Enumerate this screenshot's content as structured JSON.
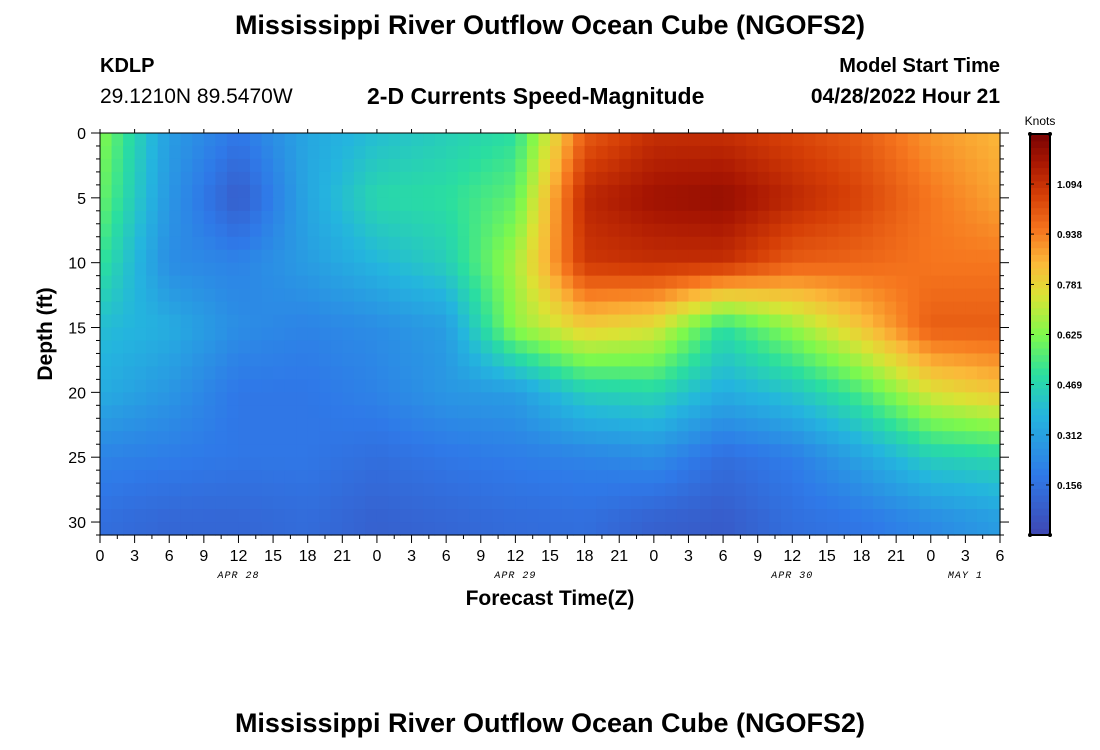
{
  "header": {
    "title": "Mississippi River Outflow Ocean Cube (NGOFS2)",
    "station": "KDLP",
    "coords": "29.1210N  89.5470W",
    "subtitle": "2-D Currents Speed-Magnitude",
    "model_start_label": "Model Start Time",
    "model_start_value": "04/28/2022 Hour 21"
  },
  "footer": {
    "title_repeat": "Mississippi River Outflow Ocean Cube (NGOFS2)"
  },
  "chart_data": {
    "type": "heatmap",
    "title": "2-D Currents Speed-Magnitude",
    "xlabel": "Forecast Time(Z)",
    "ylabel": "Depth (ft)",
    "x_range_hours": [
      0,
      78
    ],
    "y_range_ft": [
      0,
      31
    ],
    "y_inverted": true,
    "x_tick_labels": [
      "0",
      "3",
      "6",
      "9",
      "12",
      "15",
      "18",
      "21",
      "0",
      "3",
      "6",
      "9",
      "12",
      "15",
      "18",
      "21",
      "0",
      "3",
      "6",
      "9",
      "12",
      "15",
      "18",
      "21",
      "0",
      "3",
      "6"
    ],
    "y_tick_labels": [
      "0",
      "5",
      "10",
      "15",
      "20",
      "25",
      "30"
    ],
    "date_labels": [
      {
        "hour": 12,
        "label": "APR 28"
      },
      {
        "hour": 36,
        "label": "APR 29"
      },
      {
        "hour": 60,
        "label": "APR 30"
      },
      {
        "hour": 75,
        "label": "MAY 1"
      }
    ],
    "colorbar": {
      "title": "Knots",
      "min": 0.0,
      "max": 1.25,
      "ticks": [
        "0.156",
        "0.312",
        "0.469",
        "0.625",
        "0.781",
        "0.938",
        "1.094"
      ]
    },
    "grid": false,
    "depth_levels_ft": [
      0,
      5,
      10,
      15,
      20,
      25,
      30
    ],
    "time_hours": [
      0,
      6,
      12,
      18,
      24,
      30,
      36,
      42,
      48,
      54,
      60,
      66,
      72,
      78
    ],
    "speed_knots": [
      [
        0.64,
        0.3,
        0.18,
        0.33,
        0.4,
        0.45,
        0.5,
        1.0,
        1.1,
        1.1,
        1.05,
        1.0,
        0.9,
        0.85
      ],
      [
        0.6,
        0.28,
        0.08,
        0.33,
        0.48,
        0.5,
        0.58,
        1.12,
        1.18,
        1.2,
        1.12,
        1.05,
        0.95,
        0.88
      ],
      [
        0.52,
        0.25,
        0.22,
        0.3,
        0.38,
        0.45,
        0.68,
        1.08,
        1.1,
        1.1,
        1.0,
        0.98,
        0.95,
        0.95
      ],
      [
        0.4,
        0.35,
        0.25,
        0.22,
        0.25,
        0.3,
        0.65,
        0.8,
        0.75,
        0.5,
        0.65,
        0.82,
        1.0,
        1.0
      ],
      [
        0.35,
        0.28,
        0.18,
        0.18,
        0.22,
        0.28,
        0.3,
        0.45,
        0.48,
        0.35,
        0.42,
        0.55,
        0.75,
        0.82
      ],
      [
        0.22,
        0.2,
        0.18,
        0.18,
        0.15,
        0.18,
        0.2,
        0.22,
        0.25,
        0.15,
        0.2,
        0.32,
        0.45,
        0.48
      ],
      [
        0.15,
        0.12,
        0.12,
        0.14,
        0.1,
        0.12,
        0.14,
        0.15,
        0.1,
        0.08,
        0.15,
        0.18,
        0.24,
        0.3
      ]
    ]
  }
}
